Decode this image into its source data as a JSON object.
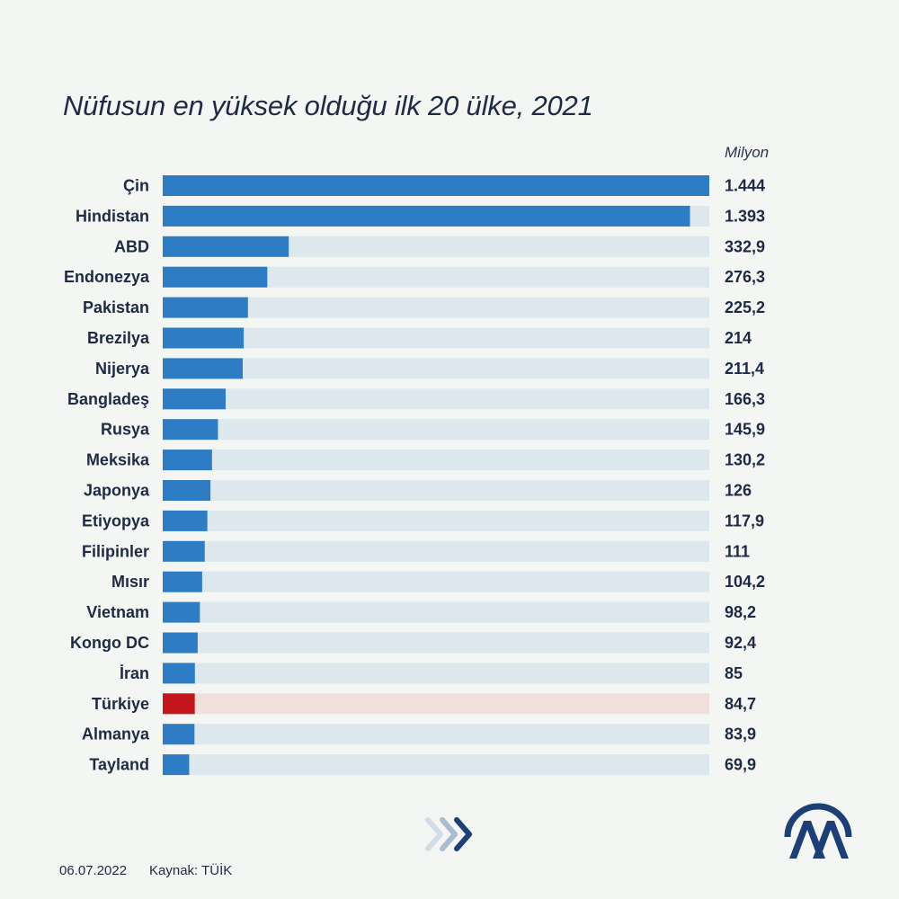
{
  "header": {
    "title": "Nüfusun en yüksek olduğu ilk 20 ülke, 2021",
    "unit": "Milyon"
  },
  "footer": {
    "date": "06.07.2022",
    "source": "Kaynak: TÜİK"
  },
  "colors": {
    "bar": "#2e7dc4",
    "track": "#dce8ee",
    "highlight_bar": "#c4161c",
    "highlight_track": "#f0dfdb",
    "text": "#1f2a44",
    "logo": "#1c3f76"
  },
  "icons": [
    "chevron-right-arrows-icon",
    "aa-logo-icon"
  ],
  "chart_data": {
    "type": "bar",
    "orientation": "horizontal",
    "title": "Nüfusun en yüksek olduğu ilk 20 ülke, 2021",
    "unit": "Milyon",
    "xlim": [
      0,
      1444
    ],
    "grid": false,
    "highlight": "Türkiye",
    "categories": [
      "Çin",
      "Hindistan",
      "ABD",
      "Endonezya",
      "Pakistan",
      "Brezilya",
      "Nijerya",
      "Bangladeş",
      "Rusya",
      "Meksika",
      "Japonya",
      "Etiyopya",
      "Filipinler",
      "Mısır",
      "Vietnam",
      "Kongo DC",
      "İran",
      "Türkiye",
      "Almanya",
      "Tayland"
    ],
    "values": [
      1444,
      1393,
      332.9,
      276.3,
      225.2,
      214,
      211.4,
      166.3,
      145.9,
      130.2,
      126,
      117.9,
      111,
      104.2,
      98.2,
      92.4,
      85,
      84.7,
      83.9,
      69.9
    ],
    "value_labels": [
      "1.444",
      "1.393",
      "332,9",
      "276,3",
      "225,2",
      "214",
      "211,4",
      "166,3",
      "145,9",
      "130,2",
      "126",
      "117,9",
      "111",
      "104,2",
      "98,2",
      "92,4",
      "85",
      "84,7",
      "83,9",
      "69,9"
    ]
  }
}
